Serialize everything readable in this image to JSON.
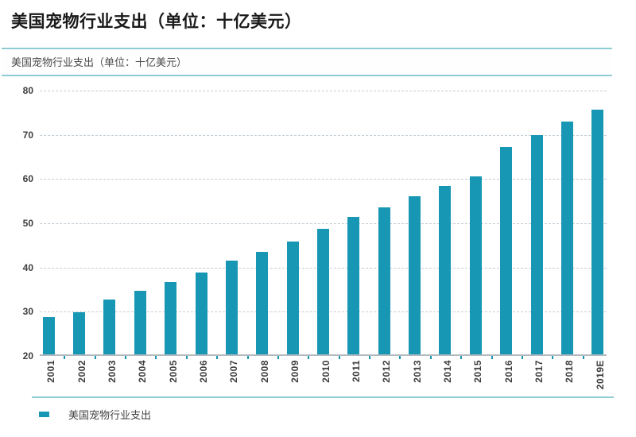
{
  "page": {
    "title": "美国宠物行业支出（单位：十亿美元）",
    "panel_subtitle": "美国宠物行业支出（单位：十亿美元）"
  },
  "chart_data": {
    "type": "bar",
    "title": "美国宠物行业支出（单位：十亿美元）",
    "categories": [
      "2001",
      "2002",
      "2003",
      "2004",
      "2005",
      "2006",
      "2007",
      "2008",
      "2009",
      "2010",
      "2011",
      "2012",
      "2013",
      "2014",
      "2015",
      "2016",
      "2017",
      "2018",
      "2019E"
    ],
    "values": [
      28.5,
      29.5,
      32.4,
      34.4,
      36.3,
      38.5,
      41.2,
      43.2,
      45.5,
      48.3,
      51.0,
      53.3,
      55.7,
      58.0,
      60.3,
      66.8,
      69.5,
      72.6,
      75.4
    ],
    "xlabel": "",
    "ylabel": "",
    "ylim": [
      20,
      80
    ],
    "yticks": [
      20,
      30,
      40,
      50,
      60,
      70,
      80
    ],
    "grid": "horizontal-dashed",
    "legend_position": "bottom-left",
    "legend_label": "美国宠物行业支出",
    "bar_color": "#1797b4"
  },
  "colors": {
    "bar": "#1797b4",
    "accent_line": "#8fcbd3",
    "gridline": "#c3ced6",
    "baseline": "#b2bac0",
    "text_primary": "#1a1a1a",
    "text_secondary": "#4a4a4a"
  }
}
